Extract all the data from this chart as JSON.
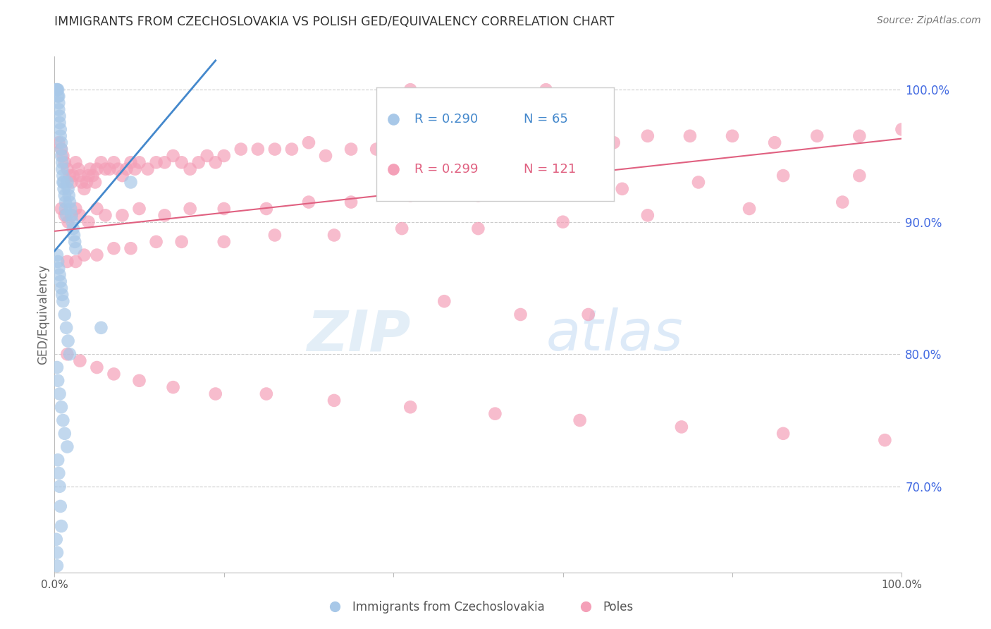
{
  "title": "IMMIGRANTS FROM CZECHOSLOVAKIA VS POLISH GED/EQUIVALENCY CORRELATION CHART",
  "source": "Source: ZipAtlas.com",
  "ylabel": "GED/Equivalency",
  "watermark": "ZIPatlas",
  "legend_label_blue": "Immigrants from Czechoslovakia",
  "legend_label_pink": "Poles",
  "blue_color": "#a8c8e8",
  "pink_color": "#f4a0b8",
  "blue_line_color": "#4488cc",
  "pink_line_color": "#e06080",
  "right_axis_color": "#4169E1",
  "title_color": "#333333",
  "source_color": "#777777",
  "background_color": "#ffffff",
  "grid_color": "#cccccc",
  "xlim": [
    0.0,
    1.0
  ],
  "ylim": [
    0.635,
    1.025
  ],
  "right_yticks": [
    0.7,
    0.8,
    0.9,
    1.0
  ],
  "right_yticklabels": [
    "70.0%",
    "80.0%",
    "90.0%",
    "100.0%"
  ],
  "blue_scatter_x": [
    0.002,
    0.003,
    0.003,
    0.004,
    0.004,
    0.005,
    0.005,
    0.005,
    0.006,
    0.006,
    0.007,
    0.007,
    0.008,
    0.008,
    0.008,
    0.009,
    0.009,
    0.01,
    0.01,
    0.011,
    0.011,
    0.012,
    0.013,
    0.013,
    0.014,
    0.015,
    0.016,
    0.017,
    0.018,
    0.019,
    0.02,
    0.021,
    0.022,
    0.023,
    0.024,
    0.025,
    0.003,
    0.004,
    0.005,
    0.006,
    0.007,
    0.008,
    0.009,
    0.01,
    0.012,
    0.014,
    0.016,
    0.018,
    0.003,
    0.004,
    0.006,
    0.008,
    0.01,
    0.012,
    0.015,
    0.004,
    0.005,
    0.006,
    0.007,
    0.008,
    0.002,
    0.003,
    0.055,
    0.09,
    0.003
  ],
  "blue_scatter_y": [
    1.0,
    1.0,
    1.0,
    1.0,
    0.995,
    0.995,
    0.99,
    0.985,
    0.98,
    0.975,
    0.97,
    0.965,
    0.96,
    0.955,
    0.95,
    0.945,
    0.94,
    0.935,
    0.93,
    0.93,
    0.925,
    0.92,
    0.915,
    0.91,
    0.905,
    0.93,
    0.925,
    0.92,
    0.915,
    0.91,
    0.905,
    0.9,
    0.895,
    0.89,
    0.885,
    0.88,
    0.875,
    0.87,
    0.865,
    0.86,
    0.855,
    0.85,
    0.845,
    0.84,
    0.83,
    0.82,
    0.81,
    0.8,
    0.79,
    0.78,
    0.77,
    0.76,
    0.75,
    0.74,
    0.73,
    0.72,
    0.71,
    0.7,
    0.685,
    0.67,
    0.66,
    0.65,
    0.82,
    0.93,
    0.64
  ],
  "pink_scatter_x": [
    0.005,
    0.008,
    0.01,
    0.012,
    0.015,
    0.018,
    0.02,
    0.022,
    0.025,
    0.028,
    0.03,
    0.032,
    0.035,
    0.038,
    0.04,
    0.042,
    0.045,
    0.048,
    0.05,
    0.055,
    0.06,
    0.065,
    0.07,
    0.075,
    0.08,
    0.085,
    0.09,
    0.095,
    0.1,
    0.11,
    0.12,
    0.13,
    0.14,
    0.15,
    0.16,
    0.17,
    0.18,
    0.19,
    0.2,
    0.22,
    0.24,
    0.26,
    0.28,
    0.3,
    0.32,
    0.35,
    0.38,
    0.4,
    0.43,
    0.46,
    0.5,
    0.54,
    0.58,
    0.62,
    0.66,
    0.7,
    0.75,
    0.8,
    0.85,
    0.9,
    0.95,
    1.0,
    0.008,
    0.012,
    0.016,
    0.02,
    0.025,
    0.03,
    0.04,
    0.05,
    0.06,
    0.08,
    0.1,
    0.13,
    0.16,
    0.2,
    0.25,
    0.3,
    0.35,
    0.42,
    0.5,
    0.58,
    0.67,
    0.76,
    0.86,
    0.95,
    0.015,
    0.025,
    0.035,
    0.05,
    0.07,
    0.09,
    0.12,
    0.15,
    0.2,
    0.26,
    0.33,
    0.41,
    0.5,
    0.6,
    0.7,
    0.82,
    0.93,
    0.015,
    0.03,
    0.05,
    0.07,
    0.1,
    0.14,
    0.19,
    0.25,
    0.33,
    0.42,
    0.52,
    0.62,
    0.74,
    0.86,
    0.98,
    0.46,
    0.55,
    0.63,
    0.42,
    0.58
  ],
  "pink_scatter_y": [
    0.96,
    0.955,
    0.95,
    0.945,
    0.94,
    0.935,
    0.93,
    0.935,
    0.945,
    0.94,
    0.935,
    0.93,
    0.925,
    0.93,
    0.935,
    0.94,
    0.935,
    0.93,
    0.94,
    0.945,
    0.94,
    0.94,
    0.945,
    0.94,
    0.935,
    0.94,
    0.945,
    0.94,
    0.945,
    0.94,
    0.945,
    0.945,
    0.95,
    0.945,
    0.94,
    0.945,
    0.95,
    0.945,
    0.95,
    0.955,
    0.955,
    0.955,
    0.955,
    0.96,
    0.95,
    0.955,
    0.955,
    0.96,
    0.955,
    0.96,
    0.96,
    0.96,
    0.955,
    0.96,
    0.96,
    0.965,
    0.965,
    0.965,
    0.96,
    0.965,
    0.965,
    0.97,
    0.91,
    0.905,
    0.9,
    0.905,
    0.91,
    0.905,
    0.9,
    0.91,
    0.905,
    0.905,
    0.91,
    0.905,
    0.91,
    0.91,
    0.91,
    0.915,
    0.915,
    0.92,
    0.92,
    0.925,
    0.925,
    0.93,
    0.935,
    0.935,
    0.87,
    0.87,
    0.875,
    0.875,
    0.88,
    0.88,
    0.885,
    0.885,
    0.885,
    0.89,
    0.89,
    0.895,
    0.895,
    0.9,
    0.905,
    0.91,
    0.915,
    0.8,
    0.795,
    0.79,
    0.785,
    0.78,
    0.775,
    0.77,
    0.77,
    0.765,
    0.76,
    0.755,
    0.75,
    0.745,
    0.74,
    0.735,
    0.84,
    0.83,
    0.83,
    1.0,
    1.0
  ],
  "blue_line_x": [
    0.0,
    0.19
  ],
  "blue_line_y": [
    0.878,
    1.022
  ],
  "pink_line_x": [
    0.0,
    1.0
  ],
  "pink_line_y": [
    0.893,
    0.963
  ]
}
